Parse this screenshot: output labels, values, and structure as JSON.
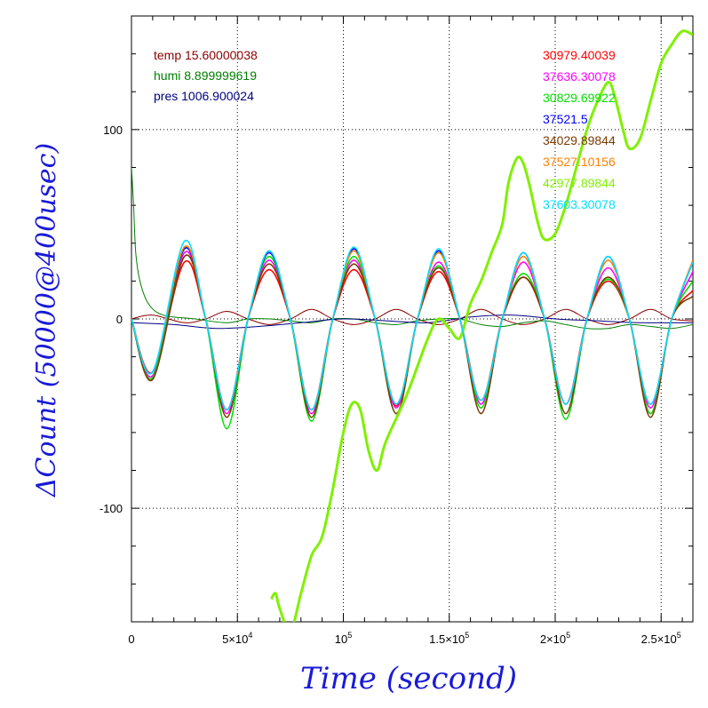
{
  "chart_data": {
    "type": "line",
    "xlabel": "Time (second)",
    "ylabel": "ΔCount (50000@400usec)",
    "xlim": [
      0,
      265000
    ],
    "ylim": [
      -160,
      160
    ],
    "grid": true,
    "x_ticks": [
      {
        "value": 0,
        "label": "0",
        "exp": ""
      },
      {
        "value": 50000,
        "label": "5×10",
        "exp": "4"
      },
      {
        "value": 100000,
        "label": "10",
        "exp": "5"
      },
      {
        "value": 150000,
        "label": "1.5×10",
        "exp": "5"
      },
      {
        "value": 200000,
        "label": "2×10",
        "exp": "5"
      },
      {
        "value": 250000,
        "label": "2.5×10",
        "exp": "5"
      }
    ],
    "y_ticks": [
      {
        "value": 100,
        "label": "100"
      },
      {
        "value": 0,
        "label": "0"
      },
      {
        "value": -100,
        "label": "-100"
      }
    ],
    "env_legend": [
      {
        "label": "temp 15.60000038",
        "color": "#8b0000"
      },
      {
        "label": "humi 8.899999619",
        "color": "#008000"
      },
      {
        "label": "pres 1006.900024",
        "color": "#000080"
      }
    ],
    "series": [
      {
        "name": "30979.40039",
        "color": "#ff0000",
        "x": [
          0,
          10000,
          25000,
          35000,
          45000,
          55000,
          65000,
          75000,
          85000,
          95000,
          105000,
          115000,
          125000,
          135000,
          145000,
          155000,
          165000,
          175000,
          185000,
          195000,
          205000,
          215000,
          225000,
          235000,
          245000,
          255000,
          265000
        ],
        "y": [
          0,
          -28,
          30,
          0,
          -48,
          0,
          26,
          0,
          -48,
          0,
          26,
          0,
          -46,
          0,
          25,
          0,
          -43,
          0,
          22,
          0,
          -45,
          0,
          20,
          0,
          -50,
          0,
          15
        ]
      },
      {
        "name": "37636.30078",
        "color": "#ff00ff",
        "x": [
          0,
          10000,
          25000,
          35000,
          45000,
          55000,
          65000,
          75000,
          85000,
          95000,
          105000,
          115000,
          125000,
          135000,
          145000,
          155000,
          165000,
          175000,
          185000,
          195000,
          205000,
          215000,
          225000,
          235000,
          245000,
          255000,
          265000
        ],
        "y": [
          0,
          -30,
          35,
          0,
          -50,
          0,
          31,
          0,
          -50,
          0,
          31,
          0,
          -47,
          0,
          30,
          0,
          -45,
          0,
          30,
          0,
          -45,
          0,
          27,
          0,
          -47,
          0,
          25
        ]
      },
      {
        "name": "30829.69922",
        "color": "#00e000",
        "x": [
          0,
          10000,
          25000,
          35000,
          45000,
          55000,
          65000,
          75000,
          85000,
          95000,
          105000,
          115000,
          125000,
          135000,
          145000,
          155000,
          165000,
          175000,
          185000,
          195000,
          205000,
          215000,
          225000,
          235000,
          245000,
          255000,
          265000
        ],
        "y": [
          0,
          -31,
          37,
          0,
          -58,
          0,
          33,
          0,
          -54,
          0,
          33,
          0,
          -50,
          0,
          28,
          0,
          -47,
          0,
          24,
          0,
          -53,
          0,
          21,
          0,
          -50,
          0,
          20
        ]
      },
      {
        "name": "37521.5",
        "color": "#0000ff",
        "x": [
          0,
          10000,
          25000,
          35000,
          45000,
          55000,
          65000,
          75000,
          85000,
          95000,
          105000,
          115000,
          125000,
          135000,
          145000,
          155000,
          165000,
          175000,
          185000,
          195000,
          205000,
          215000,
          225000,
          235000,
          245000,
          255000,
          265000
        ],
        "y": [
          0,
          -28,
          37,
          0,
          -48,
          0,
          35,
          0,
          -48,
          0,
          37,
          0,
          -45,
          0,
          36,
          0,
          -43,
          0,
          35,
          0,
          -45,
          0,
          33,
          0,
          -45,
          0,
          30
        ]
      },
      {
        "name": "34029.89844",
        "color": "#7a3a00",
        "x": [
          0,
          10000,
          25000,
          35000,
          45000,
          55000,
          65000,
          75000,
          85000,
          95000,
          105000,
          115000,
          125000,
          135000,
          145000,
          155000,
          165000,
          175000,
          185000,
          195000,
          205000,
          215000,
          225000,
          235000,
          245000,
          255000,
          265000
        ],
        "y": [
          0,
          -32,
          33,
          0,
          -52,
          0,
          29,
          0,
          -52,
          0,
          29,
          0,
          -50,
          0,
          27,
          0,
          -50,
          0,
          22,
          0,
          -50,
          0,
          22,
          0,
          -52,
          0,
          12
        ]
      },
      {
        "name": "37527.10156",
        "color": "#ff8000",
        "x": [
          0,
          10000,
          25000,
          35000,
          45000,
          55000,
          65000,
          75000,
          85000,
          95000,
          105000,
          115000,
          125000,
          135000,
          145000,
          155000,
          165000,
          175000,
          185000,
          195000,
          205000,
          215000,
          225000,
          235000,
          245000,
          255000,
          265000
        ],
        "y": [
          0,
          -28,
          38,
          0,
          -48,
          0,
          36,
          0,
          -48,
          0,
          36,
          0,
          -45,
          0,
          35,
          0,
          -43,
          0,
          33,
          0,
          -45,
          0,
          31,
          0,
          -45,
          0,
          31
        ]
      },
      {
        "name": "42977.89844",
        "color": "#80f000",
        "x": [
          66000,
          68000,
          70000,
          75000,
          80000,
          85000,
          90000,
          95000,
          100000,
          104000,
          108000,
          112000,
          116000,
          120000,
          130000,
          140000,
          145000,
          150000,
          155000,
          160000,
          165000,
          170000,
          175000,
          178000,
          182000,
          185000,
          188000,
          192000,
          195000,
          200000,
          205000,
          210000,
          215000,
          220000,
          225000,
          228000,
          232000,
          235000,
          240000,
          245000,
          250000,
          255000,
          260000,
          265000
        ],
        "y": [
          -148,
          -145,
          -153,
          -165,
          -145,
          -125,
          -115,
          -90,
          -60,
          -45,
          -48,
          -70,
          -80,
          -65,
          -40,
          -10,
          0,
          -5,
          -10,
          8,
          20,
          35,
          50,
          72,
          85,
          82,
          70,
          50,
          42,
          45,
          60,
          80,
          100,
          115,
          125,
          118,
          100,
          90,
          95,
          115,
          135,
          145,
          152,
          150
        ]
      },
      {
        "name": "37603.30078",
        "color": "#00e0ff",
        "x": [
          0,
          10000,
          25000,
          35000,
          45000,
          55000,
          65000,
          75000,
          85000,
          95000,
          105000,
          115000,
          125000,
          135000,
          145000,
          155000,
          165000,
          175000,
          185000,
          195000,
          205000,
          215000,
          225000,
          235000,
          245000,
          255000,
          265000
        ],
        "y": [
          0,
          -28,
          41,
          0,
          -48,
          0,
          36,
          0,
          -48,
          0,
          38,
          0,
          -45,
          0,
          37,
          0,
          -43,
          0,
          35,
          0,
          -45,
          0,
          33,
          0,
          -45,
          0,
          30
        ]
      }
    ],
    "env_series": [
      {
        "name": "temp",
        "color": "#8b0000",
        "x": [
          0,
          10000,
          25000,
          35000,
          45000,
          55000,
          65000,
          75000,
          85000,
          95000,
          105000,
          115000,
          125000,
          135000,
          145000,
          155000,
          165000,
          175000,
          185000,
          195000,
          205000,
          215000,
          225000,
          235000,
          245000,
          255000,
          265000
        ],
        "y": [
          0,
          2,
          -2,
          0,
          4,
          0,
          -3,
          0,
          5,
          0,
          -3,
          0,
          5,
          0,
          -3,
          0,
          5,
          0,
          -3,
          0,
          5,
          0,
          -3,
          0,
          5,
          0,
          -1
        ]
      },
      {
        "name": "humi",
        "color": "#008000",
        "x": [
          0,
          1000,
          2000,
          4000,
          8000,
          15000,
          30000,
          45000,
          55000,
          65000,
          75000,
          85000,
          95000,
          105000,
          115000,
          125000,
          135000,
          145000,
          155000,
          165000,
          175000,
          185000,
          195000,
          205000,
          215000,
          225000,
          235000,
          245000,
          255000,
          265000
        ],
        "y": [
          80,
          60,
          35,
          20,
          8,
          2,
          0,
          -2,
          0,
          0,
          -1,
          -2,
          0,
          0,
          -2,
          -3,
          -1,
          0,
          0,
          -3,
          -4,
          -2,
          -1,
          -3,
          -5,
          -5,
          -3,
          -4,
          -5,
          -3
        ]
      },
      {
        "name": "pres",
        "color": "#000080",
        "x": [
          0,
          20000,
          40000,
          60000,
          80000,
          100000,
          120000,
          140000,
          160000,
          180000,
          200000,
          220000,
          240000,
          265000
        ],
        "y": [
          -2,
          -3,
          -5,
          -4,
          -2,
          0,
          -1,
          -2,
          1,
          2,
          0,
          -1,
          -2,
          -2
        ]
      }
    ]
  }
}
